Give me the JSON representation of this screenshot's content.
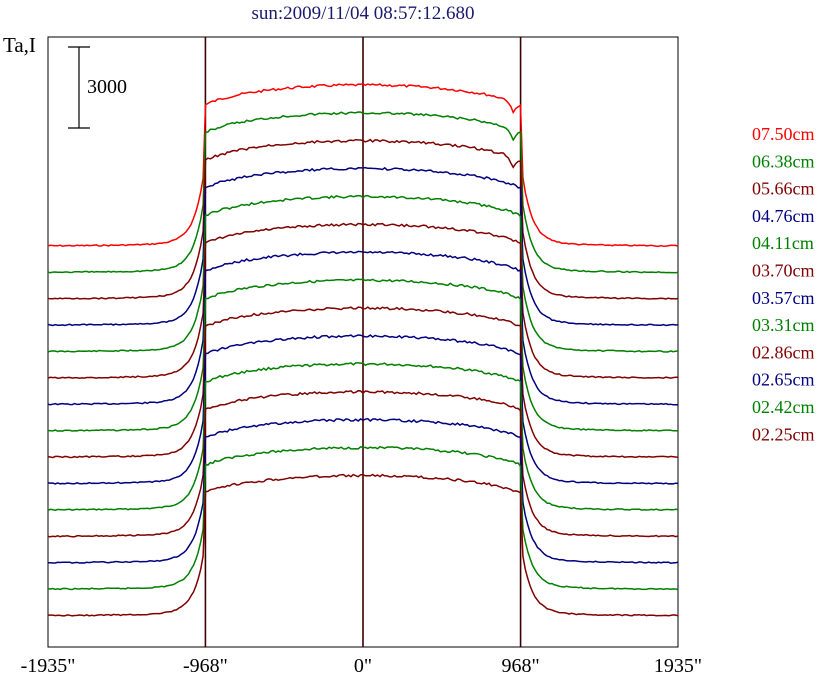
{
  "chart_data": {
    "type": "line",
    "title": "sun:2009/11/04 08:57:12.680",
    "ylabel": "Ta,I",
    "xlabel": "",
    "scale_bar_label": "3000",
    "x_ticks": [
      "-1935\"",
      "-968\"",
      "0\"",
      "968\"",
      "1935\""
    ],
    "x_tick_values": [
      -1935,
      -968,
      0,
      968,
      1935
    ],
    "xlim": [
      -1935,
      1935
    ],
    "reference_lines": [
      -968,
      0,
      968
    ],
    "grid": false,
    "legend_position": "right",
    "series": [
      {
        "name": "07.50cm",
        "color": "#ff0000"
      },
      {
        "name": "06.38cm",
        "color": "#008000"
      },
      {
        "name": "05.66cm",
        "color": "#800000"
      },
      {
        "name": "04.76cm",
        "color": "#000080"
      },
      {
        "name": "04.11cm",
        "color": "#008000"
      },
      {
        "name": "03.70cm",
        "color": "#800000"
      },
      {
        "name": "03.57cm",
        "color": "#000080"
      },
      {
        "name": "03.31cm",
        "color": "#008000"
      },
      {
        "name": "02.86cm",
        "color": "#800000"
      },
      {
        "name": "02.65cm",
        "color": "#000080"
      },
      {
        "name": "02.42cm",
        "color": "#008000"
      },
      {
        "name": "02.25cm",
        "color": "#800000"
      },
      {
        "name": "",
        "color": "#000080"
      },
      {
        "name": "",
        "color": "#008000"
      },
      {
        "name": "",
        "color": "#800000"
      }
    ]
  }
}
